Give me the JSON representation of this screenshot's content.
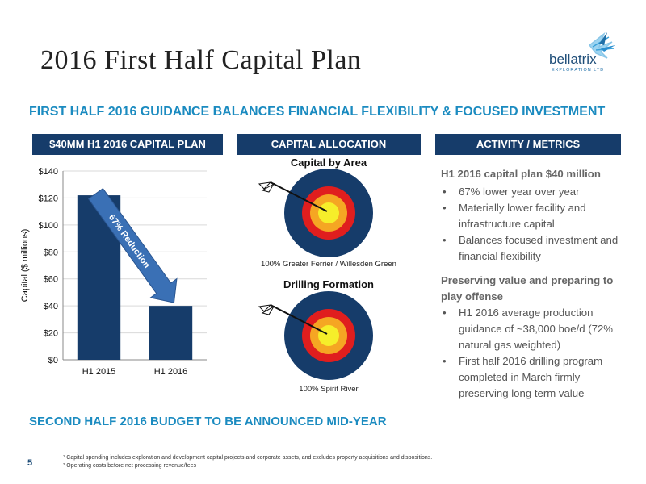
{
  "title": "2016 First Half Capital Plan",
  "logo": {
    "name": "bellatrix",
    "sub": "EXPLORATION LTD"
  },
  "subtitle": "FIRST HALF 2016 GUIDANCE BALANCES FINANCIAL FLEXIBILITY & FOCUSED INVESTMENT",
  "headers": {
    "capital_plan": "$40MM H1 2016 CAPITAL PLAN",
    "allocation": "CAPITAL ALLOCATION",
    "activity": "ACTIVITY / METRICS"
  },
  "chart_data": {
    "type": "bar",
    "categories": [
      "H1 2015",
      "H1 2016"
    ],
    "values": [
      122,
      40
    ],
    "ylabel": "Capital ($ millions)",
    "ylim": [
      0,
      140
    ],
    "yticks": [
      "$0",
      "$20",
      "$40",
      "$60",
      "$80",
      "$100",
      "$120",
      "$140"
    ],
    "annotation": "67% Reduction",
    "colors": {
      "bar": "#163c6a",
      "arrow": "#3a70b5",
      "grid": "#d9d9d9"
    }
  },
  "allocation": {
    "area_title": "Capital by Area",
    "area_caption": "100% Greater Ferrier / Willesden Green",
    "formation_title": "Drilling Formation",
    "formation_caption": "100% Spirit River"
  },
  "metrics": {
    "h1": "H1 2016 capital plan $40 million",
    "bullets1": [
      "67% lower year over year",
      "Materially lower facility and infrastructure capital",
      "Balances focused investment and financial flexibility"
    ],
    "h2": "Preserving value and preparing to play offense",
    "bullets2": [
      "H1 2016 average production guidance of ~38,000 boe/d (72% natural gas weighted)",
      "First half 2016 drilling program completed in March firmly preserving long term value"
    ]
  },
  "bottom_text": "SECOND HALF 2016 BUDGET TO BE ANNOUNCED MID-YEAR",
  "page_number": "5",
  "footnotes": {
    "f1": "¹ Capital spending includes exploration and development capital projects and corporate assets, and excludes property acquisitions and dispositions.",
    "f2": "² Operating costs before net processing revenue/fees"
  }
}
